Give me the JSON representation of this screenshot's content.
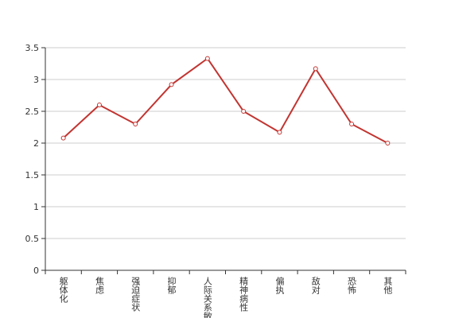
{
  "chart_data": {
    "type": "line",
    "categories": [
      "躯体化",
      "焦虑",
      "强迫症状",
      "抑郁",
      "人际关系敏感",
      "精神病性",
      "偏执",
      "敌对",
      "恐怖",
      "其他"
    ],
    "series": [
      {
        "color": "#c23531",
        "values": [
          2.08,
          2.6,
          2.3,
          2.92,
          3.33,
          2.5,
          2.17,
          3.17,
          2.3,
          2.0
        ]
      }
    ],
    "ylim": [
      0,
      3.5
    ],
    "yticks": [
      0,
      0.5,
      1,
      1.5,
      2,
      2.5,
      3,
      3.5
    ],
    "grid": true
  }
}
